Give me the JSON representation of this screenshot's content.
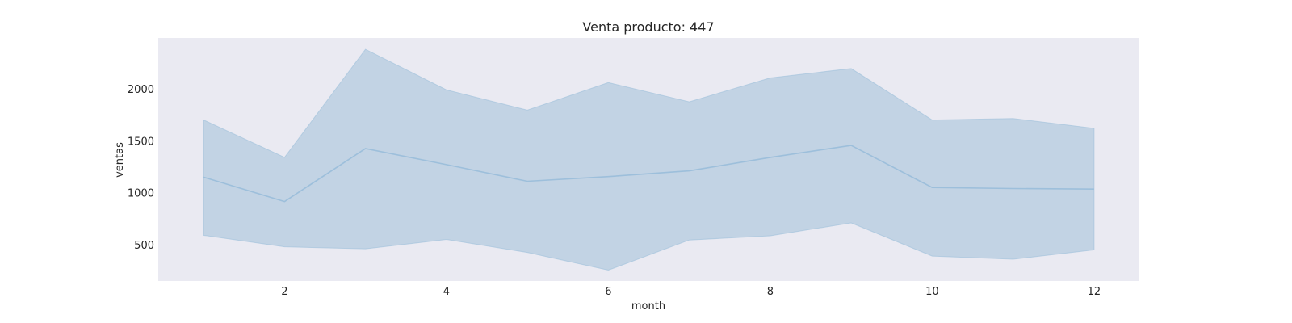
{
  "chart_data": {
    "type": "line",
    "title": "Venta producto: 447",
    "xlabel": "month",
    "ylabel": "ventas",
    "x": [
      1,
      2,
      3,
      4,
      5,
      6,
      7,
      8,
      9,
      10,
      11,
      12
    ],
    "series": [
      {
        "values": [
          1150,
          915,
          1425,
          1270,
          1110,
          1155,
          1210,
          1340,
          1455,
          1050,
          1040,
          1035
        ],
        "lower": [
          590,
          480,
          460,
          550,
          425,
          255,
          545,
          585,
          710,
          390,
          360,
          450
        ],
        "upper": [
          1700,
          1340,
          2380,
          1990,
          1795,
          2060,
          1875,
          2105,
          2195,
          1700,
          1715,
          1620
        ]
      }
    ],
    "xlim": [
      0.44,
      12.56
    ],
    "ylim": [
      150,
      2490
    ],
    "xticks": [
      "2",
      "4",
      "6",
      "8",
      "10",
      "12"
    ],
    "yticks": [
      "500",
      "1000",
      "1500",
      "2000"
    ],
    "grid": false,
    "colors": {
      "plot_background": "#eaeaf2",
      "line": "#9dbfdb",
      "band": "#c2d3e4"
    }
  }
}
